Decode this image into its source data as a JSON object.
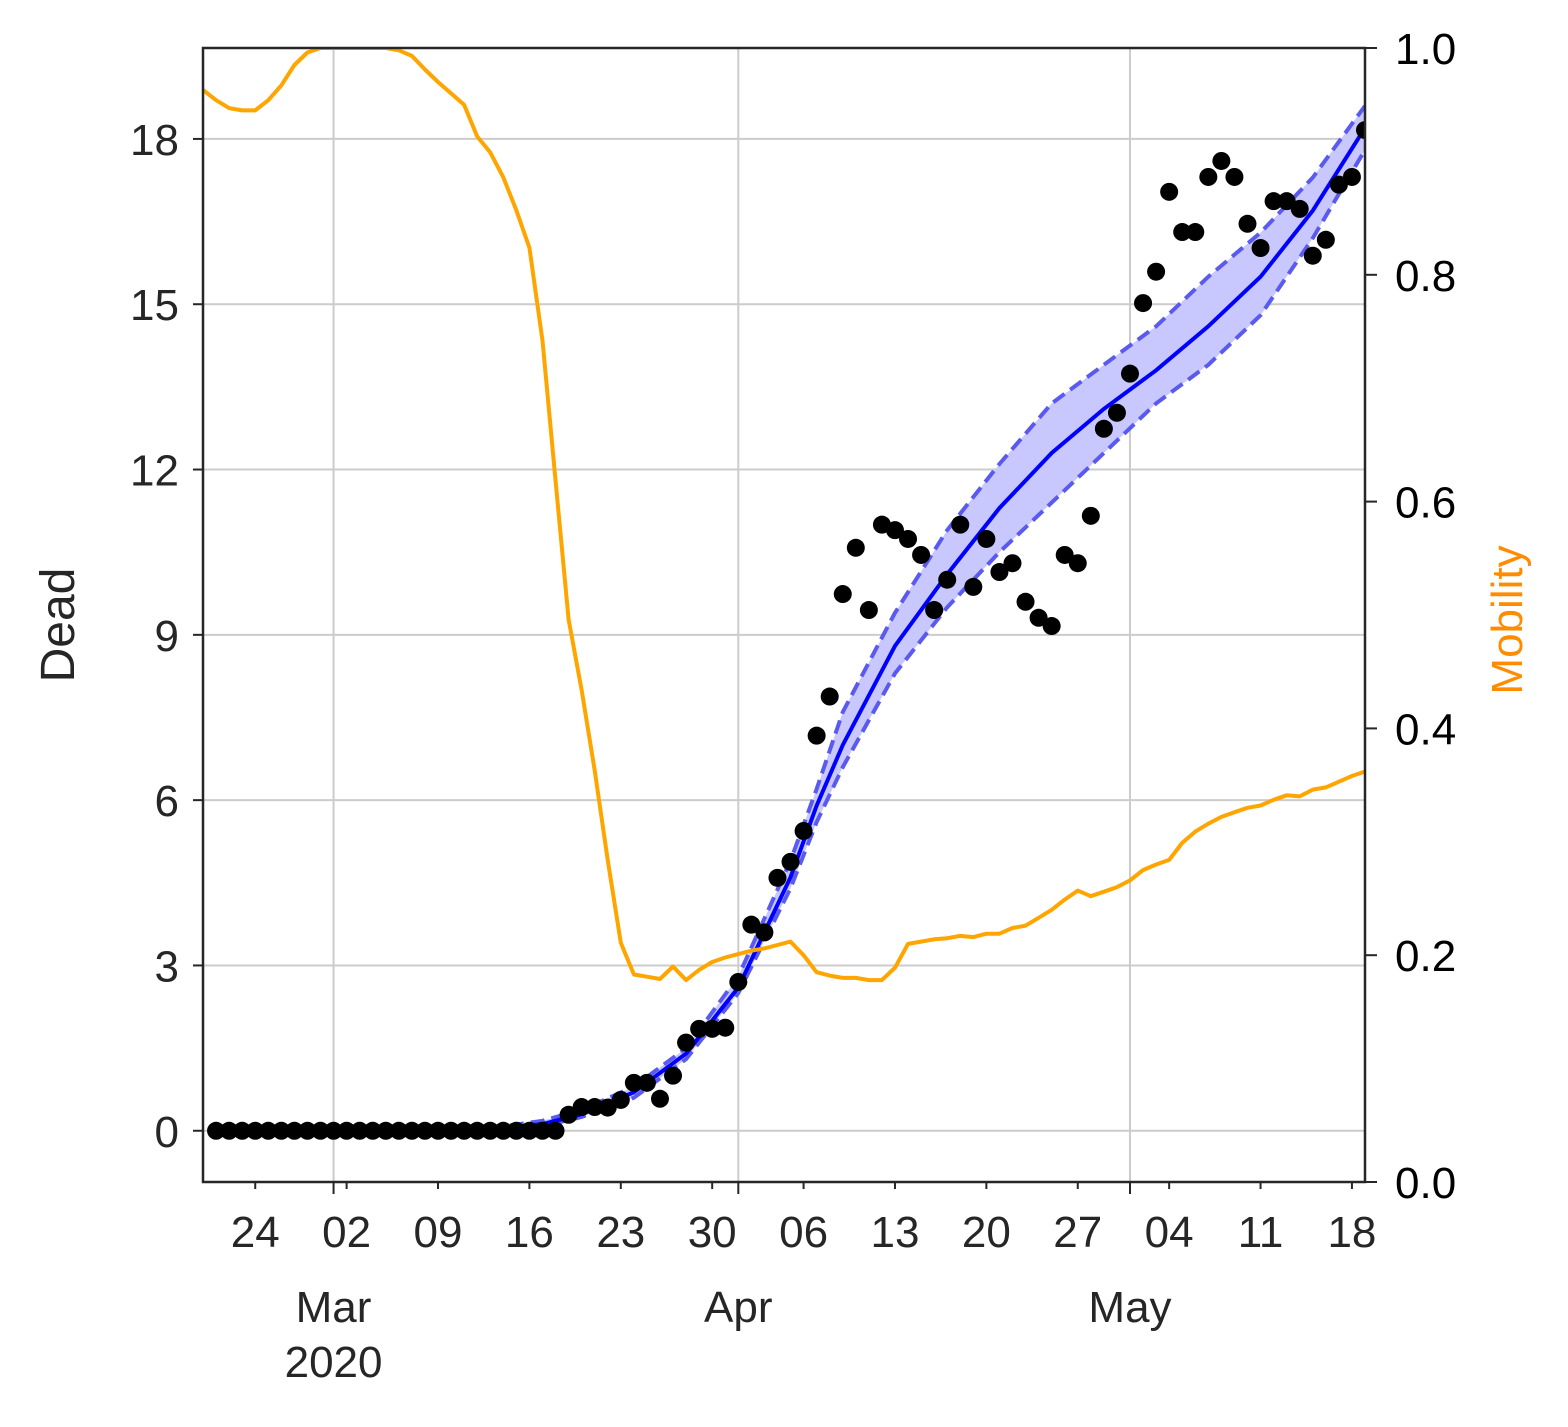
{
  "chart_data": {
    "type": "line",
    "y_label": "Dead",
    "y2_label": "Mobility",
    "y2_label_color": "#ff8c00",
    "xlim": [
      "2020-02-20",
      "2020-05-19"
    ],
    "xticks": [
      {
        "value": "2020-03-01",
        "label": "Mar\n2020"
      },
      {
        "value": "2020-04-01",
        "label": "Apr"
      },
      {
        "value": "2020-05-01",
        "label": "May"
      }
    ],
    "xminorticks": [
      {
        "value": "2020-02-24",
        "label": "24"
      },
      {
        "value": "2020-03-02",
        "label": "02"
      },
      {
        "value": "2020-03-09",
        "label": "09"
      },
      {
        "value": "2020-03-16",
        "label": "16"
      },
      {
        "value": "2020-03-23",
        "label": "23"
      },
      {
        "value": "2020-03-30",
        "label": "30"
      },
      {
        "value": "2020-04-06",
        "label": "06"
      },
      {
        "value": "2020-04-13",
        "label": "13"
      },
      {
        "value": "2020-04-20",
        "label": "20"
      },
      {
        "value": "2020-04-27",
        "label": "27"
      },
      {
        "value": "2020-05-04",
        "label": "04"
      },
      {
        "value": "2020-05-11",
        "label": "11"
      },
      {
        "value": "2020-05-18",
        "label": "18"
      }
    ],
    "ylim": [
      -0.93,
      19.65
    ],
    "yticks": [
      0,
      3,
      6,
      9,
      12,
      15,
      18
    ],
    "y2lim": [
      0,
      1
    ],
    "y2ticks": [
      {
        "value": 0,
        "label": "0.0"
      },
      {
        "value": 0.2,
        "label": "0.2"
      },
      {
        "value": 0.4,
        "label": "0.4"
      },
      {
        "value": 0.6,
        "label": "0.6"
      },
      {
        "value": 0.8,
        "label": "0.8"
      },
      {
        "value": 1,
        "label": "1.0"
      }
    ],
    "grid": true,
    "series": [
      {
        "type": "band",
        "color": "#0000ff",
        "band_color": "#c8c8ff",
        "edge_color": "#5a5af0",
        "x": [
          "2020-02-21",
          "2020-02-29",
          "2020-03-08",
          "2020-03-14",
          "2020-03-17",
          "2020-03-20",
          "2020-03-24",
          "2020-03-28",
          "2020-04-01",
          "2020-04-05",
          "2020-04-07",
          "2020-04-09",
          "2020-04-13",
          "2020-04-17",
          "2020-04-21",
          "2020-04-25",
          "2020-04-29",
          "2020-05-03",
          "2020-05-07",
          "2020-05-11",
          "2020-05-15",
          "2020-05-19"
        ],
        "values": [
          0,
          0,
          0.01,
          0.05,
          0.12,
          0.3,
          0.7,
          1.4,
          2.6,
          4.6,
          5.9,
          7.0,
          8.8,
          10.1,
          11.3,
          12.3,
          13.1,
          13.8,
          14.6,
          15.5,
          16.7,
          18.2
        ],
        "lower": [
          0,
          0,
          0.0,
          0.03,
          0.08,
          0.25,
          0.6,
          1.3,
          2.5,
          4.4,
          5.6,
          6.6,
          8.3,
          9.5,
          10.5,
          11.4,
          12.3,
          13.2,
          13.9,
          14.8,
          16.2,
          17.8
        ],
        "upper": [
          0,
          0.01,
          0.02,
          0.08,
          0.18,
          0.38,
          0.8,
          1.5,
          2.8,
          4.9,
          6.2,
          7.6,
          9.4,
          10.9,
          12.1,
          13.2,
          13.9,
          14.6,
          15.5,
          16.3,
          17.3,
          18.6
        ]
      },
      {
        "type": "scatter",
        "color": "#000000",
        "x": [
          "2020-02-21",
          "2020-02-22",
          "2020-02-23",
          "2020-02-24",
          "2020-02-25",
          "2020-02-26",
          "2020-02-27",
          "2020-02-28",
          "2020-02-29",
          "2020-03-01",
          "2020-03-02",
          "2020-03-03",
          "2020-03-04",
          "2020-03-05",
          "2020-03-06",
          "2020-03-07",
          "2020-03-08",
          "2020-03-09",
          "2020-03-10",
          "2020-03-11",
          "2020-03-12",
          "2020-03-13",
          "2020-03-14",
          "2020-03-15",
          "2020-03-16",
          "2020-03-17",
          "2020-03-18",
          "2020-03-19",
          "2020-03-20",
          "2020-03-21",
          "2020-03-22",
          "2020-03-23",
          "2020-03-24",
          "2020-03-25",
          "2020-03-26",
          "2020-03-27",
          "2020-03-28",
          "2020-03-29",
          "2020-03-30",
          "2020-03-31",
          "2020-04-01",
          "2020-04-02",
          "2020-04-03",
          "2020-04-04",
          "2020-04-05",
          "2020-04-06",
          "2020-04-07",
          "2020-04-08",
          "2020-04-09",
          "2020-04-10",
          "2020-04-11",
          "2020-04-12",
          "2020-04-13",
          "2020-04-14",
          "2020-04-15",
          "2020-04-16",
          "2020-04-17",
          "2020-04-18",
          "2020-04-19",
          "2020-04-20",
          "2020-04-21",
          "2020-04-22",
          "2020-04-23",
          "2020-04-24",
          "2020-04-25",
          "2020-04-26",
          "2020-04-27",
          "2020-04-28",
          "2020-04-29",
          "2020-04-30",
          "2020-05-01",
          "2020-05-02",
          "2020-05-03",
          "2020-05-04",
          "2020-05-05",
          "2020-05-06",
          "2020-05-07",
          "2020-05-08",
          "2020-05-09",
          "2020-05-10",
          "2020-05-11",
          "2020-05-12",
          "2020-05-13",
          "2020-05-14",
          "2020-05-15",
          "2020-05-16",
          "2020-05-17",
          "2020-05-18",
          "2020-05-19"
        ],
        "values": [
          0,
          0,
          0,
          0,
          0,
          0,
          0,
          0,
          0,
          0,
          0,
          0,
          0,
          0,
          0,
          0,
          0,
          0,
          0,
          0,
          0,
          0,
          0,
          0,
          0,
          0,
          0,
          0.29,
          0.43,
          0.43,
          0.42,
          0.56,
          0.87,
          0.87,
          0.58,
          1.0,
          1.6,
          1.85,
          1.85,
          1.87,
          2.7,
          3.74,
          3.6,
          4.59,
          4.88,
          5.44,
          7.17,
          7.88,
          9.74,
          10.58,
          9.45,
          11.0,
          10.9,
          10.74,
          10.45,
          9.45,
          10.0,
          11.0,
          9.87,
          10.74,
          10.14,
          10.3,
          9.6,
          9.31,
          9.16,
          10.45,
          10.3,
          11.16,
          12.74,
          13.03,
          13.74,
          15.02,
          15.59,
          17.04,
          16.31,
          16.31,
          17.31,
          17.6,
          17.31,
          16.46,
          16.02,
          16.87,
          16.87,
          16.73,
          15.88,
          16.17,
          17.17,
          17.31,
          18.16
        ]
      },
      {
        "type": "line",
        "axis": "y2",
        "color": "#ffa500",
        "x": [
          "2020-02-20",
          "2020-02-21",
          "2020-02-22",
          "2020-02-23",
          "2020-02-24",
          "2020-02-25",
          "2020-02-26",
          "2020-02-27",
          "2020-02-28",
          "2020-02-29",
          "2020-03-01",
          "2020-03-02",
          "2020-03-03",
          "2020-03-04",
          "2020-03-05",
          "2020-03-06",
          "2020-03-07",
          "2020-03-08",
          "2020-03-09",
          "2020-03-10",
          "2020-03-11",
          "2020-03-12",
          "2020-03-13",
          "2020-03-14",
          "2020-03-15",
          "2020-03-16",
          "2020-03-17",
          "2020-03-18",
          "2020-03-19",
          "2020-03-20",
          "2020-03-21",
          "2020-03-22",
          "2020-03-23",
          "2020-03-24",
          "2020-03-25",
          "2020-03-26",
          "2020-03-27",
          "2020-03-28",
          "2020-03-29",
          "2020-03-30",
          "2020-03-31",
          "2020-04-01",
          "2020-04-02",
          "2020-04-03",
          "2020-04-04",
          "2020-04-05",
          "2020-04-06",
          "2020-04-07",
          "2020-04-08",
          "2020-04-09",
          "2020-04-10",
          "2020-04-11",
          "2020-04-12",
          "2020-04-13",
          "2020-04-14",
          "2020-04-15",
          "2020-04-16",
          "2020-04-17",
          "2020-04-18",
          "2020-04-19",
          "2020-04-20",
          "2020-04-21",
          "2020-04-22",
          "2020-04-23",
          "2020-04-24",
          "2020-04-25",
          "2020-04-26",
          "2020-04-27",
          "2020-04-28",
          "2020-04-29",
          "2020-04-30",
          "2020-05-01",
          "2020-05-02",
          "2020-05-03",
          "2020-05-04",
          "2020-05-05",
          "2020-05-06",
          "2020-05-07",
          "2020-05-08",
          "2020-05-09",
          "2020-05-10",
          "2020-05-11",
          "2020-05-12",
          "2020-05-13",
          "2020-05-14",
          "2020-05-15",
          "2020-05-16",
          "2020-05-17",
          "2020-05-18",
          "2020-05-19"
        ],
        "values": [
          0.963,
          0.954,
          0.947,
          0.945,
          0.945,
          0.954,
          0.967,
          0.985,
          0.996,
          1.0,
          1.0,
          1.0,
          1.0,
          1.0,
          1.0,
          0.998,
          0.993,
          0.981,
          0.97,
          0.96,
          0.95,
          0.922,
          0.908,
          0.886,
          0.857,
          0.824,
          0.742,
          0.619,
          0.496,
          0.434,
          0.363,
          0.284,
          0.211,
          0.183,
          0.181,
          0.179,
          0.19,
          0.178,
          0.187,
          0.194,
          0.198,
          0.201,
          0.204,
          0.206,
          0.209,
          0.212,
          0.2,
          0.185,
          0.182,
          0.18,
          0.18,
          0.178,
          0.178,
          0.189,
          0.21,
          0.212,
          0.214,
          0.215,
          0.217,
          0.216,
          0.219,
          0.219,
          0.224,
          0.226,
          0.233,
          0.24,
          0.249,
          0.257,
          0.252,
          0.256,
          0.26,
          0.266,
          0.275,
          0.28,
          0.284,
          0.299,
          0.309,
          0.316,
          0.322,
          0.326,
          0.33,
          0.332,
          0.337,
          0.341,
          0.34,
          0.346,
          0.348,
          0.353,
          0.358,
          0.362
        ]
      }
    ]
  }
}
